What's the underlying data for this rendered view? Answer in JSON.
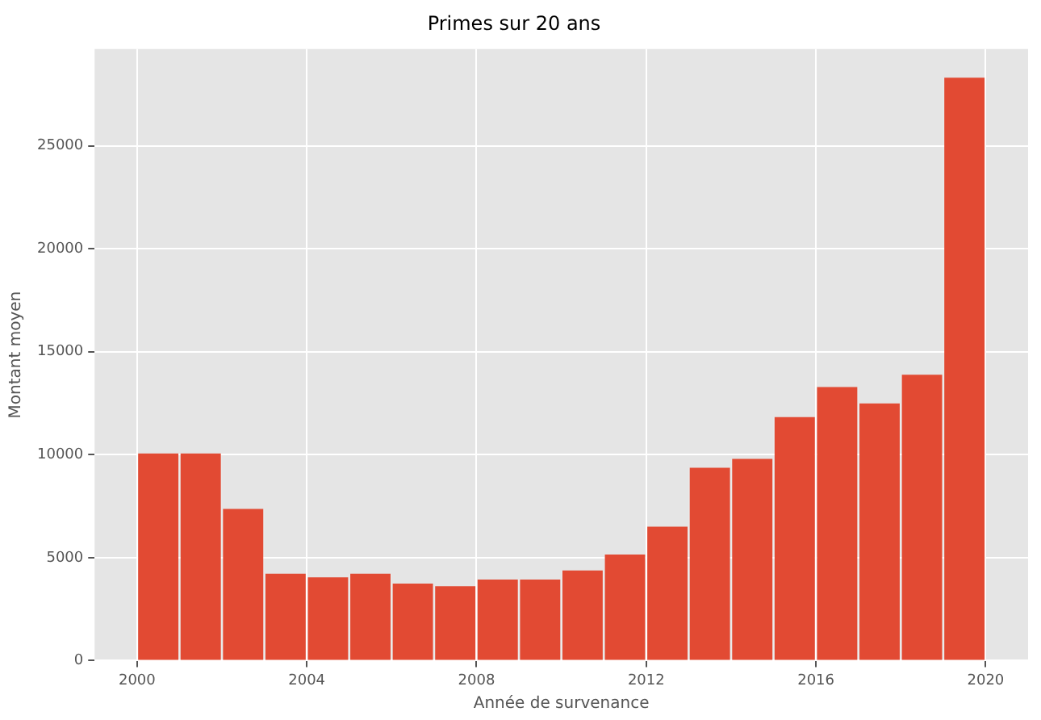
{
  "chart_data": {
    "type": "histogram",
    "title": "Primes sur 20 ans",
    "xlabel": "Année de survenance",
    "ylabel": "Montant moyen",
    "bins": [
      2000,
      2001,
      2002,
      2003,
      2004,
      2005,
      2006,
      2007,
      2008,
      2009,
      2010,
      2011,
      2012,
      2013,
      2014,
      2015,
      2016,
      2017,
      2018,
      2019,
      2020
    ],
    "values": [
      10060,
      10060,
      7370,
      4220,
      4040,
      4220,
      3740,
      3610,
      3940,
      3940,
      4380,
      5150,
      6500,
      9370,
      9800,
      11830,
      13290,
      12490,
      13880,
      28310
    ],
    "color": "#e24a33",
    "xlim": [
      1999,
      2021
    ],
    "xticks": [
      2000,
      2004,
      2008,
      2012,
      2016,
      2020
    ],
    "ylim": [
      0,
      29700
    ],
    "yticks": [
      0,
      5000,
      10000,
      15000,
      20000,
      25000
    ],
    "grid": true,
    "legend": false
  }
}
